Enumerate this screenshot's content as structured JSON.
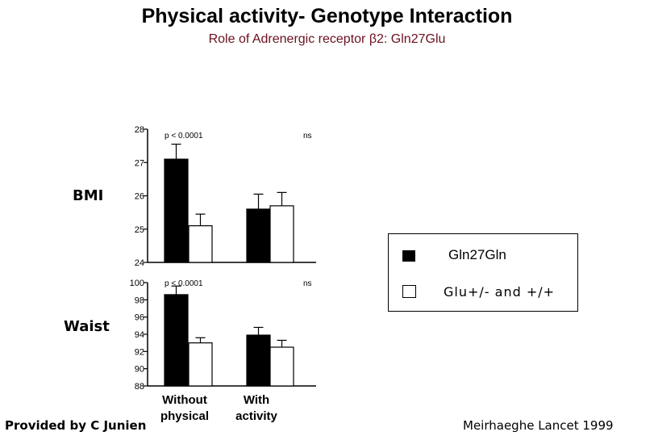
{
  "title": "Physical activity- Genotype Interaction",
  "subtitle": "Role of Adrenergic receptor β2:  Gln27Glu",
  "row_labels": {
    "bmi": "BMI",
    "waist": "Waist"
  },
  "legend": {
    "series1": "Gln27Gln",
    "series2": "Glu+/- and +/+"
  },
  "footer": {
    "left": "Provided by C Junien",
    "right": "Meirhaeghe Lancet 1999"
  },
  "colors": {
    "series1": "#000000",
    "series2": "#ffffff",
    "title_sub": "#6b1020"
  },
  "chart_data": [
    {
      "type": "bar",
      "categories": [
        "Without physical",
        "With activity"
      ],
      "series": [
        {
          "name": "Gln27Gln",
          "values": [
            27.1,
            25.6
          ],
          "err": [
            0.45,
            0.45
          ]
        },
        {
          "name": "Glu+/- and +/+",
          "values": [
            25.1,
            25.7
          ],
          "err": [
            0.35,
            0.4
          ]
        }
      ],
      "ylabel": "BMI",
      "ylim": [
        24,
        28
      ],
      "yticks": [
        "24",
        "25",
        "26",
        "27",
        "28"
      ],
      "annotations": [
        "p < 0.0001",
        "ns"
      ]
    },
    {
      "type": "bar",
      "categories": [
        "Without physical",
        "With activity"
      ],
      "series": [
        {
          "name": "Gln27Gln",
          "values": [
            98.6,
            93.9
          ],
          "err": [
            1.0,
            0.9
          ]
        },
        {
          "name": "Glu+/- and +/+",
          "values": [
            93.0,
            92.5
          ],
          "err": [
            0.6,
            0.8
          ]
        }
      ],
      "ylabel": "Waist",
      "ylim": [
        88,
        100
      ],
      "yticks": [
        "88",
        "90",
        "92",
        "94",
        "96",
        "98",
        "100"
      ],
      "annotations": [
        "p < 0.0001",
        "ns"
      ]
    }
  ],
  "xlabels": [
    [
      "Without",
      "physical"
    ],
    [
      "With",
      "activity"
    ]
  ]
}
